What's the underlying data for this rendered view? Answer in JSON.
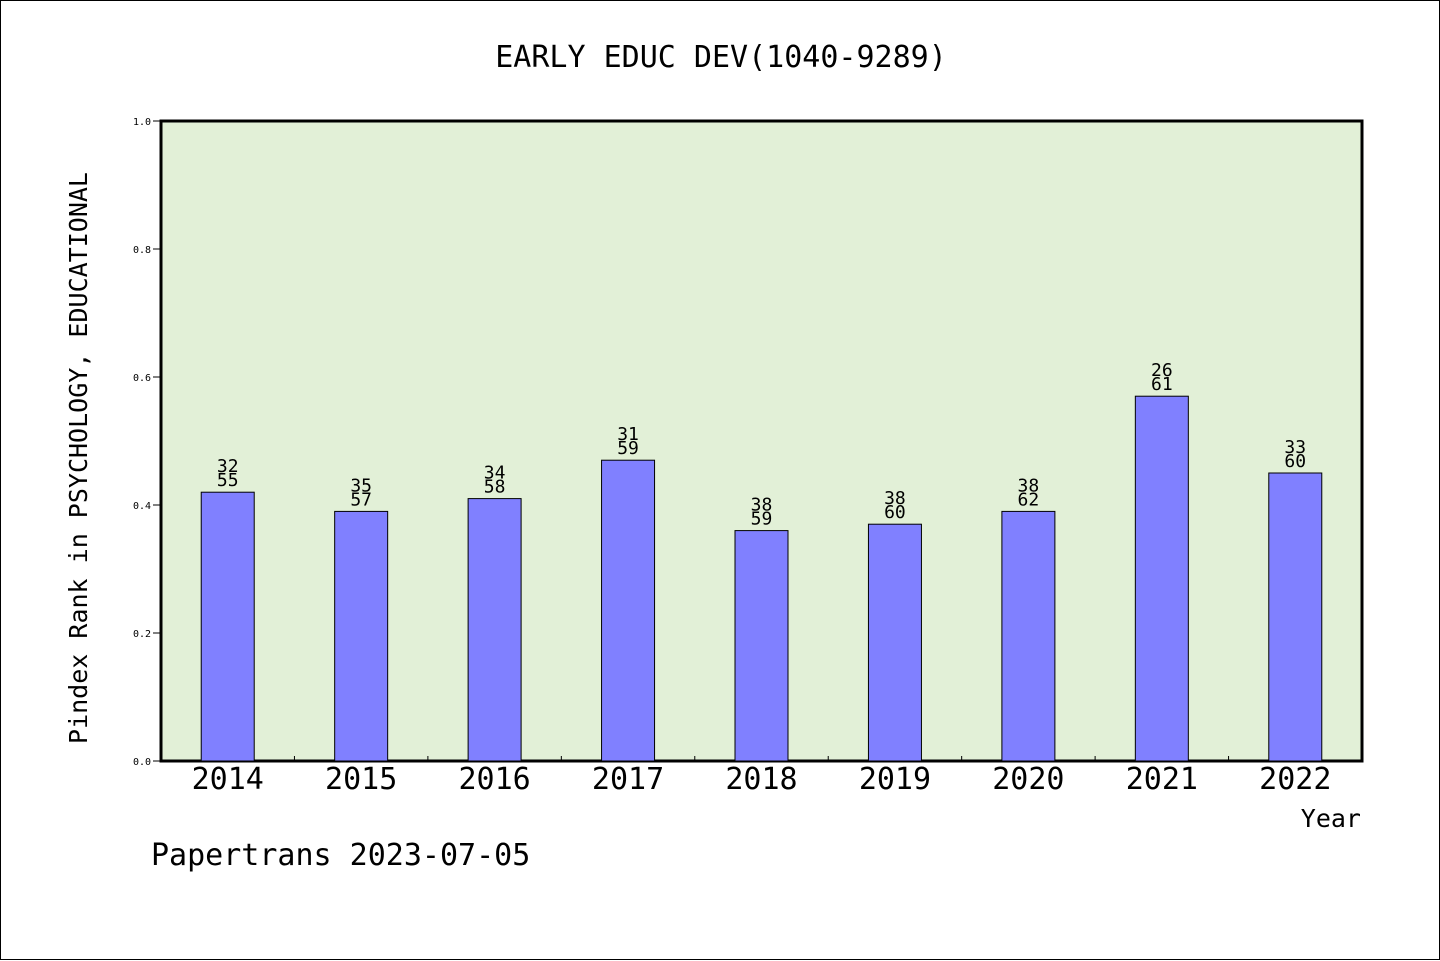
{
  "chart_data": {
    "type": "bar",
    "title": "EARLY EDUC DEV(1040-9289)",
    "ylabel": "Pindex Rank in PSYCHOLOGY, EDUCATIONAL",
    "xlabel": "Year",
    "categories": [
      "2014",
      "2015",
      "2016",
      "2017",
      "2018",
      "2019",
      "2020",
      "2021",
      "2022"
    ],
    "values": [
      0.42,
      0.39,
      0.41,
      0.47,
      0.36,
      0.37,
      0.39,
      0.57,
      0.45
    ],
    "annotations": [
      {
        "top": "32",
        "bottom": "55"
      },
      {
        "top": "35",
        "bottom": "57"
      },
      {
        "top": "34",
        "bottom": "58"
      },
      {
        "top": "31",
        "bottom": "59"
      },
      {
        "top": "38",
        "bottom": "59"
      },
      {
        "top": "38",
        "bottom": "60"
      },
      {
        "top": "38",
        "bottom": "62"
      },
      {
        "top": "26",
        "bottom": "61"
      },
      {
        "top": "33",
        "bottom": "60"
      }
    ],
    "ylim": [
      0,
      1
    ],
    "yticks": [
      "0.0",
      "0.2",
      "0.4",
      "0.6",
      "0.8",
      "1.0"
    ],
    "grid": false,
    "colors": {
      "bar_fill": "#8080ff",
      "plot_background": "#e2f0d7",
      "axis": "#000000"
    }
  },
  "footer": {
    "text": "Papertrans 2023-07-05"
  }
}
